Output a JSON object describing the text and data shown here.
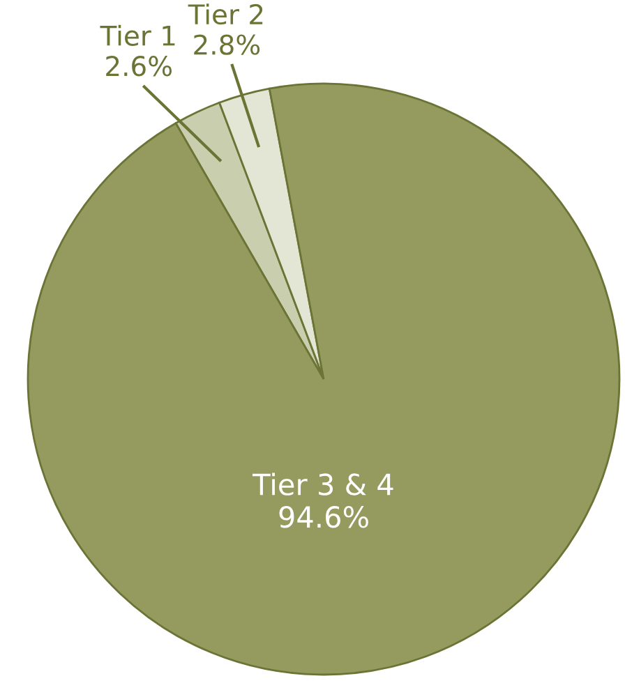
{
  "chart_data": {
    "type": "pie",
    "categories": [
      "Tier 1",
      "Tier 2",
      "Tier 3 & 4"
    ],
    "values": [
      2.6,
      2.8,
      94.6
    ],
    "colors": [
      "#c9cfae",
      "#e3e6d4",
      "#959b5f"
    ],
    "value_labels": [
      "2.6%",
      "2.8%",
      "94.6%"
    ],
    "legend": false
  }
}
